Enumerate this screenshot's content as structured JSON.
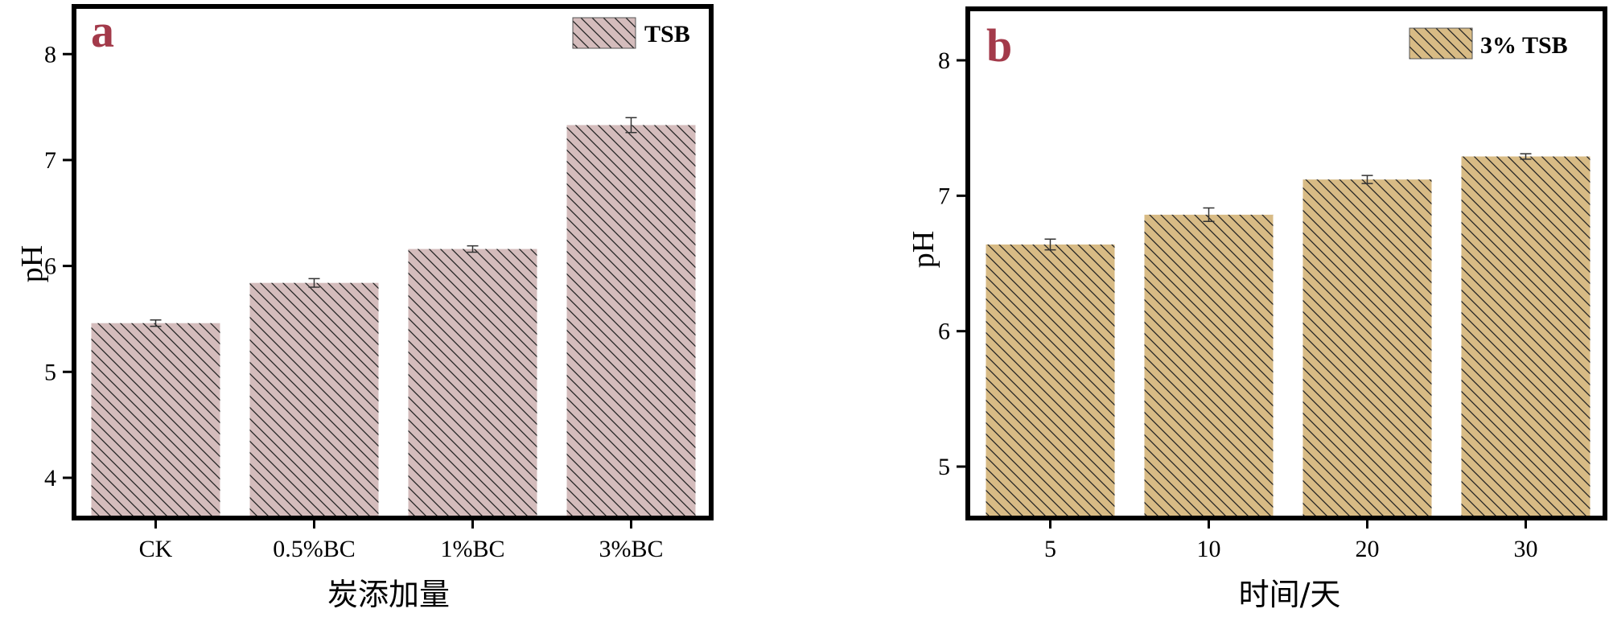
{
  "chart_data": [
    {
      "type": "bar",
      "panel_label": "a",
      "categories": [
        "CK",
        "0.5%BC",
        "1%BC",
        "3%BC"
      ],
      "series": [
        {
          "name": "TSB",
          "values": [
            5.46,
            5.84,
            6.16,
            7.33
          ],
          "errors": [
            0.03,
            0.04,
            0.03,
            0.07
          ]
        }
      ],
      "xlabel": "炭添加量",
      "ylabel": "pH",
      "ylim": [
        3.62,
        8.45
      ],
      "yticks": [
        4,
        5,
        6,
        7,
        8
      ],
      "color": "#d4bcbc",
      "hatch": "diagonal",
      "legend_position": "top-right",
      "grid": false
    },
    {
      "type": "bar",
      "panel_label": "b",
      "categories": [
        "5",
        "10",
        "20",
        "30"
      ],
      "series": [
        {
          "name": "3% TSB",
          "values": [
            6.64,
            6.86,
            7.12,
            7.29
          ],
          "errors": [
            0.04,
            0.05,
            0.03,
            0.02
          ]
        }
      ],
      "xlabel": "时间/天",
      "ylabel": "pH",
      "ylim": [
        4.62,
        8.38
      ],
      "yticks": [
        5,
        6,
        7,
        8
      ],
      "color": "#d8bb85",
      "hatch": "diagonal",
      "legend_position": "top-right",
      "grid": false
    }
  ]
}
